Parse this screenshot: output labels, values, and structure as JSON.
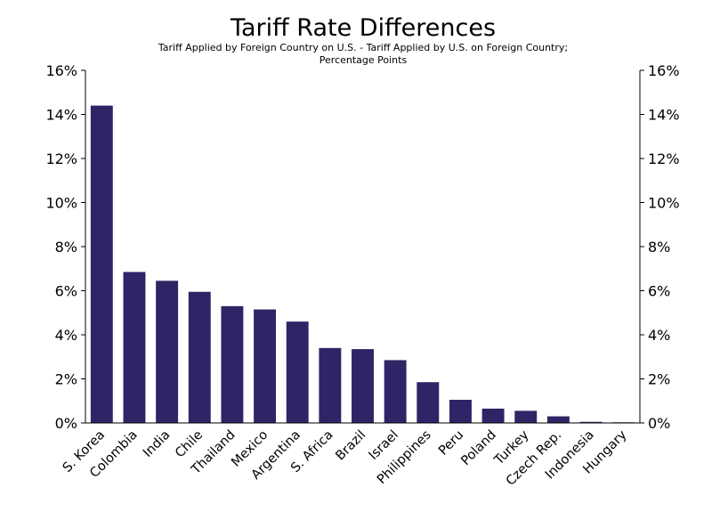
{
  "chart_data": {
    "type": "bar",
    "title": "Tariff Rate Differences",
    "subtitle_lines": [
      "Tariff Applied by Foreign Country on U.S. - Tariff Applied by U.S. on Foreign Country;",
      "Percentage Points"
    ],
    "categories": [
      "S. Korea",
      "Colombia",
      "India",
      "Chile",
      "Thailand",
      "Mexico",
      "Argentina",
      "S. Africa",
      "Brazil",
      "Israel",
      "Philippines",
      "Peru",
      "Poland",
      "Turkey",
      "Czech Rep.",
      "Indonesia",
      "Hungary"
    ],
    "values": [
      14.4,
      6.85,
      6.45,
      5.95,
      5.3,
      5.15,
      4.6,
      3.4,
      3.35,
      2.85,
      1.85,
      1.05,
      0.65,
      0.55,
      0.3,
      0.05,
      0.03
    ],
    "ylim": [
      0,
      16
    ],
    "yticks": [
      0,
      2,
      4,
      6,
      8,
      10,
      12,
      14,
      16
    ],
    "ytick_labels": [
      "0%",
      "2%",
      "4%",
      "6%",
      "8%",
      "10%",
      "12%",
      "14%",
      "16%"
    ],
    "xlabel": "",
    "ylabel": "",
    "grid": false,
    "bar_color": "#2e2566"
  }
}
